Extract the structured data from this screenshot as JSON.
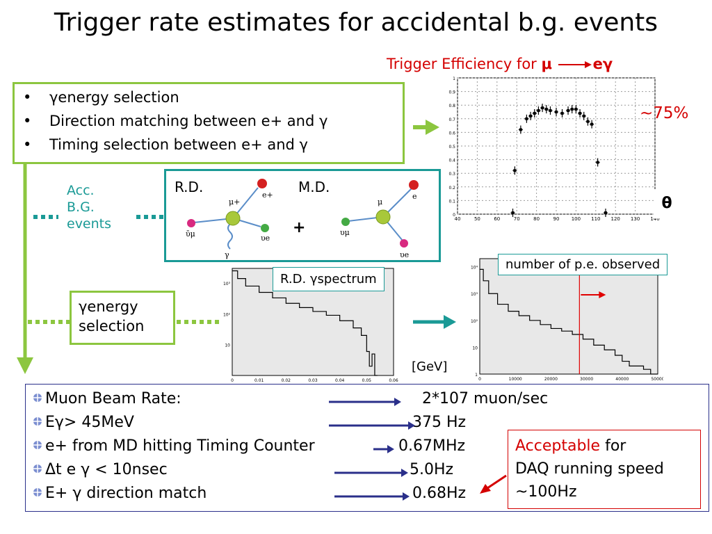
{
  "title": "Trigger rate estimates for accidental b.g. events",
  "efficiency_label": {
    "prefix": "Trigger Efficiency for ",
    "mu": "μ",
    "eg": "eγ"
  },
  "selection_list": [
    "γenergy selection",
    "Direction matching between e+ and γ",
    "Timing selection between e+ and γ"
  ],
  "acc_bg_label": [
    "Acc.",
    "B.G.",
    "events"
  ],
  "diagram": {
    "rd_label": "R.D.",
    "md_label": "M.D.",
    "plus": "+",
    "rd_particles": {
      "center": "μ+",
      "eplus": "e+",
      "numu": "ῡμ",
      "nue": "υe",
      "gamma": "γ"
    },
    "md_particles": {
      "center": "μ",
      "e": "e",
      "numu": "υμ",
      "nue": "υe"
    }
  },
  "egamma_selection_label": [
    "γenergy",
    "selection"
  ],
  "rd_spectrum_label": "R.D. γspectrum",
  "pe_label": "number of p.e. observed",
  "gev_label": "[GeV]",
  "theta_label": "θ",
  "pct_label": "~75%",
  "rates": [
    {
      "name": "Muon Beam Rate:",
      "value": "2*107 muon/sec"
    },
    {
      "name": "Eγ> 45MeV",
      "value": "375 Hz"
    },
    {
      "name": "e+ from MD hitting Timing Counter",
      "value": "0.67MHz"
    },
    {
      "name": "Δt e γ < 10nsec",
      "value": "5.0Hz"
    },
    {
      "name": "E+ γ direction match",
      "value": "0.68Hz"
    }
  ],
  "acceptable": {
    "word": "Acceptable",
    "rest_line1": " for",
    "line2": "DAQ running speed",
    "line3": "~100Hz"
  },
  "colors": {
    "green": "#8cc63f",
    "teal": "#1a9a96",
    "red": "#d40000",
    "navy": "#2a2f8a"
  },
  "chart_data": [
    {
      "type": "scatter",
      "x_ticks": [
        "40",
        "50",
        "60",
        "70",
        "80",
        "90",
        "100",
        "110",
        "120",
        "130",
        "140"
      ],
      "y_ticks": [
        "0",
        "0.1",
        "0.2",
        "0.3",
        "0.4",
        "0.5",
        "0.6",
        "0.7",
        "0.8",
        "0.9",
        "1"
      ],
      "xlim": [
        40,
        140
      ],
      "ylim": [
        0,
        1
      ],
      "x": [
        68,
        69,
        72,
        75,
        77,
        79,
        81,
        83,
        85,
        87,
        90,
        93,
        96,
        98,
        100,
        102,
        104,
        106,
        108,
        111,
        115
      ],
      "values": [
        0.01,
        0.32,
        0.62,
        0.7,
        0.72,
        0.74,
        0.76,
        0.78,
        0.77,
        0.76,
        0.75,
        0.74,
        0.76,
        0.77,
        0.77,
        0.74,
        0.72,
        0.68,
        0.66,
        0.38,
        0.01
      ]
    },
    {
      "type": "area",
      "x_ticks": [
        "0",
        "0.01",
        "0.02",
        "0.03",
        "0.04",
        "0.05",
        "0.06"
      ],
      "y_ticks": [
        "10",
        "10²",
        "10³"
      ],
      "xlim": [
        0,
        0.06
      ],
      "ylog": true,
      "ylim": [
        1,
        3000
      ],
      "x": [
        0,
        0.002,
        0.005,
        0.01,
        0.015,
        0.02,
        0.025,
        0.03,
        0.035,
        0.04,
        0.045,
        0.048,
        0.05,
        0.051,
        0.052,
        0.053
      ],
      "values": [
        2500,
        1400,
        800,
        500,
        330,
        220,
        160,
        120,
        90,
        60,
        35,
        20,
        6,
        2,
        5,
        1
      ]
    },
    {
      "type": "area",
      "x_ticks": [
        "0",
        "10000",
        "20000",
        "30000",
        "40000",
        "50000"
      ],
      "y_ticks": [
        "1",
        "10",
        "10²",
        "10³",
        "10⁴"
      ],
      "xlim": [
        0,
        50000
      ],
      "ylog": true,
      "ylim": [
        1,
        20000
      ],
      "x": [
        0,
        1000,
        2500,
        5000,
        8000,
        11000,
        14000,
        17000,
        20000,
        23000,
        26000,
        29000,
        32000,
        35000,
        38000,
        40000,
        42000,
        44000,
        46000,
        48000
      ],
      "values": [
        8000,
        3000,
        1000,
        400,
        220,
        150,
        100,
        70,
        50,
        40,
        30,
        20,
        12,
        8,
        5,
        3,
        2,
        2,
        1.5,
        1
      ]
    }
  ]
}
